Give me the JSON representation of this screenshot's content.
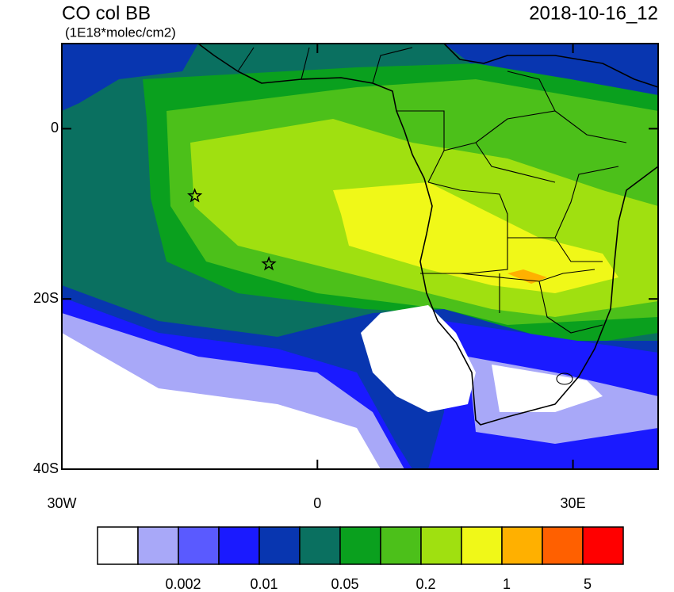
{
  "header": {
    "title": "CO col BB",
    "units": "(1E18*molec/cm2)",
    "date": "2018-10-16_12"
  },
  "axes": {
    "xlim": [
      -30,
      40
    ],
    "ylim": [
      -40,
      10
    ],
    "xticks": [
      {
        "value": -30,
        "label": "30W"
      },
      0,
      {
        "value": 30,
        "label": "30E"
      }
    ],
    "yticks": [
      0,
      {
        "value": -20,
        "label": "20S"
      },
      {
        "value": -40,
        "label": "40S"
      }
    ]
  },
  "markers": [
    {
      "lon": -14.4,
      "lat": -7.9
    },
    {
      "lon": -5.7,
      "lat": -15.9
    }
  ],
  "colorbar": {
    "colors": [
      "#ffffff",
      "#a8a8f8",
      "#5a5aff",
      "#1a1aff",
      "#0836b0",
      "#0a7060",
      "#0aa01e",
      "#4cc01a",
      "#a0e010",
      "#f0f818",
      "#ffb000",
      "#ff6000",
      "#ff0000"
    ],
    "labels": [
      0.002,
      0.01,
      0.05,
      0.2,
      1,
      5
    ]
  }
}
